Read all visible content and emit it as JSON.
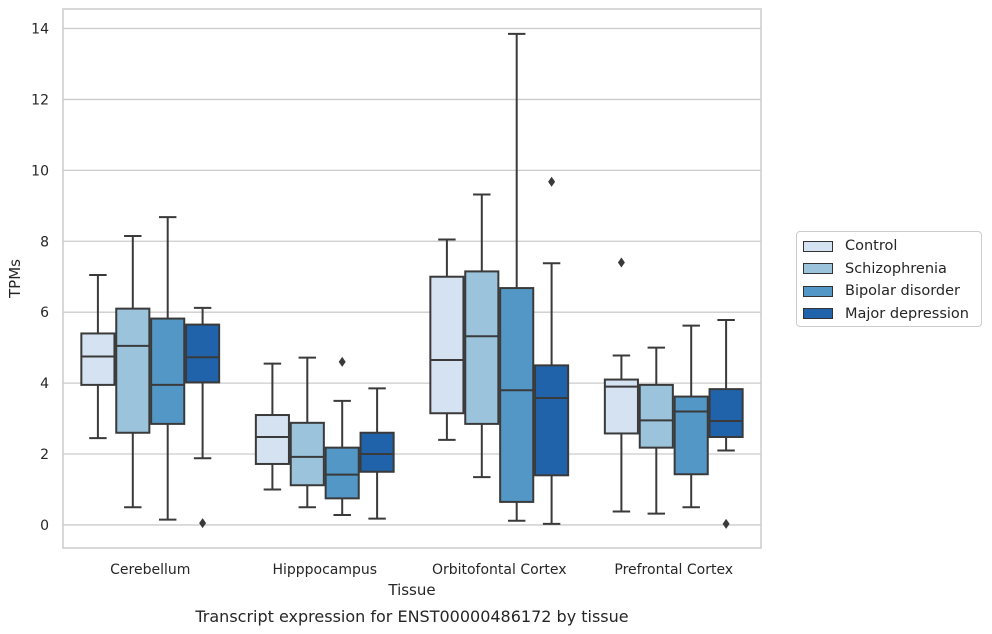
{
  "chart_data": {
    "type": "boxplot",
    "xlabel": "Tissue",
    "ylabel": "TPMs",
    "caption": "Transcript expression for ENST00000486172 by tissue",
    "ylim": [
      -0.65,
      14.55
    ],
    "yticks": [
      "0",
      "2",
      "4",
      "6",
      "8",
      "10",
      "12",
      "14"
    ],
    "grid": "horizontal",
    "legend_position": "right",
    "categories": [
      "Cerebellum",
      "Hipppocampus",
      "Orbitofontal Cortex",
      "Prefrontal Cortex"
    ],
    "series": [
      {
        "name": "Control",
        "color": "#d4e2f1",
        "boxes": [
          {
            "whislo": 2.45,
            "q1": 3.95,
            "med": 4.75,
            "q3": 5.4,
            "whishi": 7.05,
            "fliers": []
          },
          {
            "whislo": 1.0,
            "q1": 1.72,
            "med": 2.48,
            "q3": 3.1,
            "whishi": 4.55,
            "fliers": []
          },
          {
            "whislo": 2.4,
            "q1": 3.15,
            "med": 4.65,
            "q3": 7.0,
            "whishi": 8.05,
            "fliers": []
          },
          {
            "whislo": 0.38,
            "q1": 2.58,
            "med": 3.9,
            "q3": 4.1,
            "whishi": 4.78,
            "fliers": [
              7.4
            ]
          }
        ]
      },
      {
        "name": "Schizophrenia",
        "color": "#9bc3dc",
        "boxes": [
          {
            "whislo": 0.5,
            "q1": 2.6,
            "med": 5.05,
            "q3": 6.1,
            "whishi": 8.15,
            "fliers": []
          },
          {
            "whislo": 0.5,
            "q1": 1.12,
            "med": 1.92,
            "q3": 2.88,
            "whishi": 4.72,
            "fliers": []
          },
          {
            "whislo": 1.35,
            "q1": 2.85,
            "med": 5.32,
            "q3": 7.15,
            "whishi": 9.32,
            "fliers": []
          },
          {
            "whislo": 0.32,
            "q1": 2.18,
            "med": 2.95,
            "q3": 3.95,
            "whishi": 5.0,
            "fliers": []
          }
        ]
      },
      {
        "name": "Bipolar disorder",
        "color": "#5297c6",
        "boxes": [
          {
            "whislo": 0.15,
            "q1": 2.85,
            "med": 3.95,
            "q3": 5.82,
            "whishi": 8.68,
            "fliers": []
          },
          {
            "whislo": 0.28,
            "q1": 0.75,
            "med": 1.42,
            "q3": 2.18,
            "whishi": 3.5,
            "fliers": [
              4.6
            ]
          },
          {
            "whislo": 0.12,
            "q1": 0.65,
            "med": 3.8,
            "q3": 6.68,
            "whishi": 13.85,
            "fliers": []
          },
          {
            "whislo": 0.5,
            "q1": 1.43,
            "med": 3.2,
            "q3": 3.62,
            "whishi": 5.62,
            "fliers": []
          }
        ]
      },
      {
        "name": "Major depression",
        "color": "#2063ab",
        "boxes": [
          {
            "whislo": 1.88,
            "q1": 4.02,
            "med": 4.73,
            "q3": 5.65,
            "whishi": 6.12,
            "fliers": [
              0.05
            ]
          },
          {
            "whislo": 0.18,
            "q1": 1.5,
            "med": 2.0,
            "q3": 2.6,
            "whishi": 3.85,
            "fliers": []
          },
          {
            "whislo": 0.03,
            "q1": 1.4,
            "med": 3.58,
            "q3": 4.5,
            "whishi": 7.38,
            "fliers": [
              9.68
            ]
          },
          {
            "whislo": 2.1,
            "q1": 2.48,
            "med": 2.93,
            "q3": 3.83,
            "whishi": 5.78,
            "fliers": [
              0.03
            ]
          }
        ]
      }
    ]
  }
}
